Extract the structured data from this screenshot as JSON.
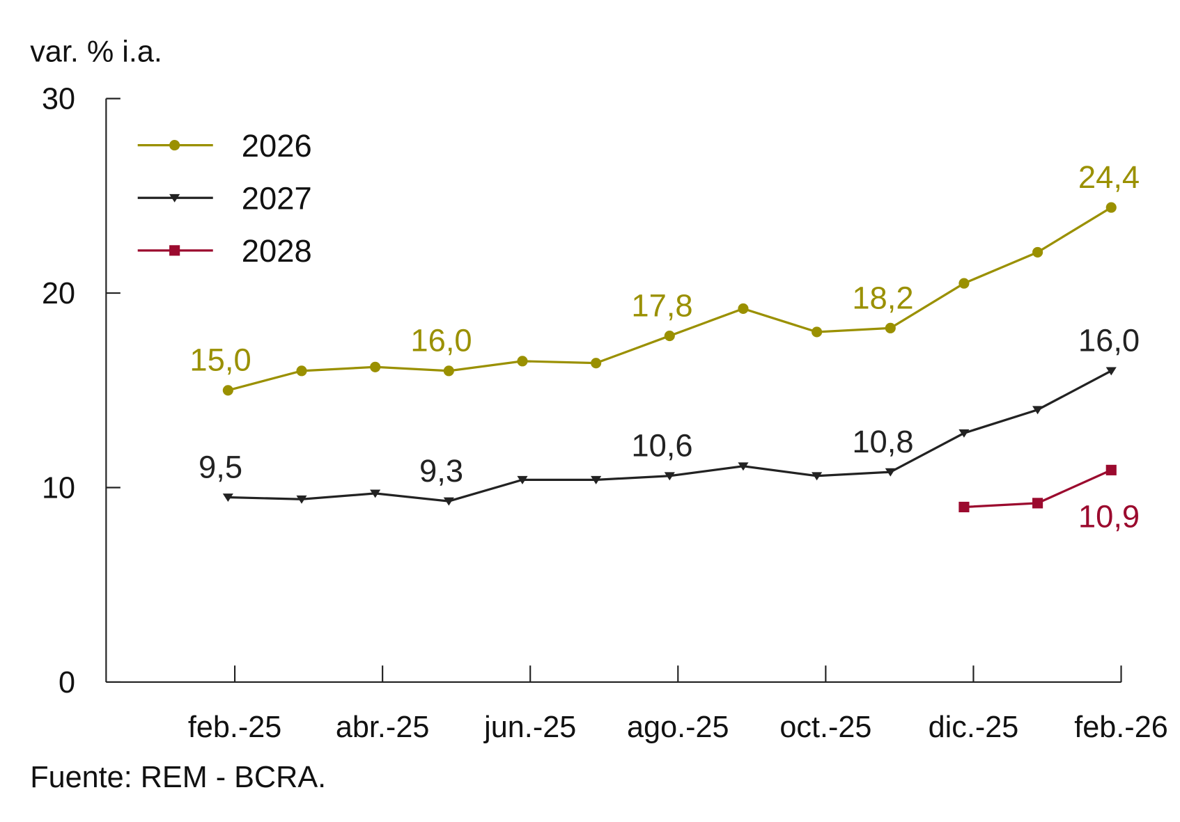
{
  "chart_data": {
    "type": "line",
    "ylabel": "var. % i.a.",
    "source": "Fuente: REM - BCRA.",
    "ylim": [
      0,
      30
    ],
    "yticks": [
      "0",
      "10",
      "20",
      "30"
    ],
    "xtick_labels": [
      "feb.-25",
      "abr.-25",
      "jun.-25",
      "ago.-25",
      "oct.-25",
      "dic.-25",
      "feb.-26"
    ],
    "x": [
      "feb.-25",
      "mar.-25",
      "abr.-25",
      "may.-25",
      "jun.-25",
      "jul.-25",
      "ago.-25",
      "sep.-25",
      "oct.-25",
      "nov.-25",
      "dic.-25",
      "ene.-26",
      "feb.-26"
    ],
    "grid": false,
    "legend_position": "top-left",
    "series": [
      {
        "name": "2026",
        "color": "#9a9000",
        "marker": "circle",
        "values": [
          15.0,
          16.0,
          16.2,
          16.0,
          16.5,
          16.4,
          17.8,
          19.2,
          18.0,
          18.2,
          20.5,
          22.1,
          24.4
        ],
        "labels": [
          "15,0",
          "",
          "",
          "16,0",
          "",
          "",
          "17,8",
          "",
          "",
          "18,2",
          "",
          "",
          "24,4"
        ]
      },
      {
        "name": "2027",
        "color": "#222222",
        "marker": "triangle-down",
        "values": [
          9.5,
          9.4,
          9.7,
          9.3,
          10.4,
          10.4,
          10.6,
          11.1,
          10.6,
          10.8,
          12.8,
          14.0,
          16.0
        ],
        "labels": [
          "9,5",
          "",
          "",
          "9,3",
          "",
          "",
          "10,6",
          "",
          "",
          "10,8",
          "",
          "",
          "16,0"
        ]
      },
      {
        "name": "2028",
        "color": "#9b0a2e",
        "marker": "square",
        "values": [
          null,
          null,
          null,
          null,
          null,
          null,
          null,
          null,
          null,
          null,
          9.0,
          9.2,
          10.9
        ],
        "labels": [
          "",
          "",
          "",
          "",
          "",
          "",
          "",
          "",
          "",
          "",
          "",
          "",
          "10,9"
        ]
      }
    ]
  }
}
